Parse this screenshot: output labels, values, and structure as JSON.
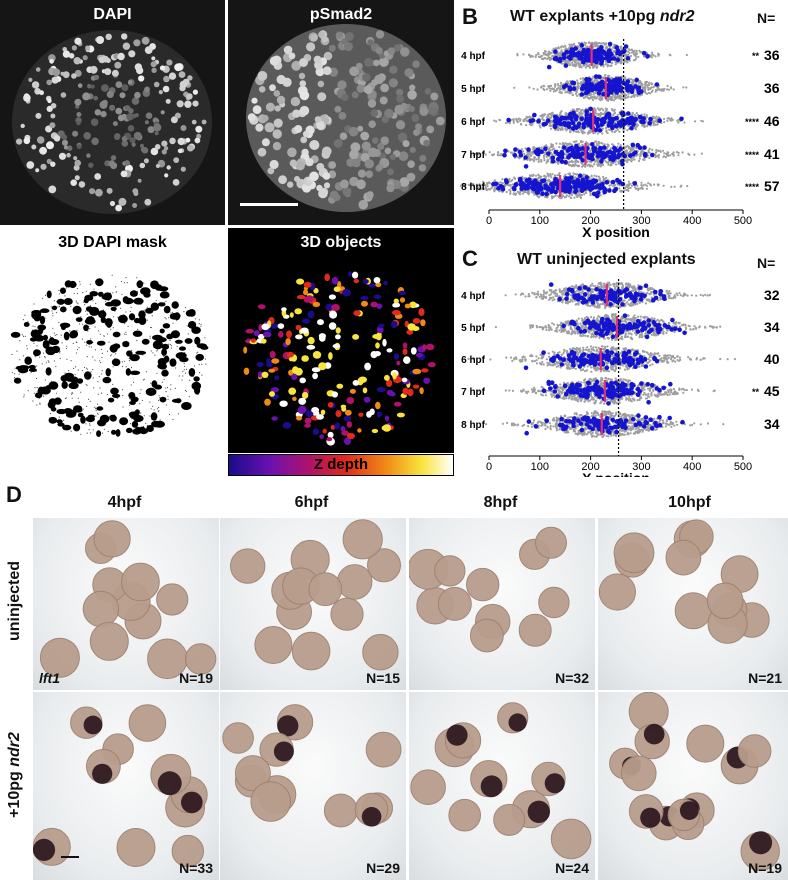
{
  "panel_a": {
    "letter": "A",
    "images": [
      {
        "title": "DAPI"
      },
      {
        "title": "pSmad2"
      },
      {
        "title": "3D DAPI mask"
      },
      {
        "title": "3D objects"
      }
    ],
    "zdepth_label": "Z depth",
    "colorbar": [
      "#1a0c8a",
      "#6a11b0",
      "#b0126a",
      "#e12a1c",
      "#f08a16",
      "#f8e43c",
      "#ffffff"
    ]
  },
  "panel_b": {
    "letter": "B",
    "title_prefix": "WT explants +10pg ",
    "title_gene": "ndr2",
    "n_header": "N="
  },
  "panel_c": {
    "letter": "C",
    "title": "WT uninjected explants",
    "n_header": "N="
  },
  "panel_d": {
    "letter": "D",
    "columns": [
      "4hpf",
      "6hpf",
      "8hpf",
      "10hpf"
    ],
    "row1_label": "uninjected",
    "row2_label_prefix": "+10pg ",
    "row2_label_gene": "ndr2",
    "gene_label": "lft1",
    "row1_n": [
      "N=19",
      "N=15",
      "N=32",
      "N=21"
    ],
    "row2_n": [
      "N=33",
      "N=29",
      "N=24",
      "N=19"
    ]
  },
  "chart_data": [
    {
      "type": "scatter",
      "title": "WT explants +10pg ndr2",
      "xlabel": "X position",
      "xlim": [
        0,
        500
      ],
      "xticks": [
        0,
        100,
        200,
        300,
        400,
        500
      ],
      "categories": [
        "4 hpf",
        "5 hpf",
        "6 hpf",
        "7 hpf",
        "8 hpf"
      ],
      "reference_line": 265,
      "median": [
        202,
        230,
        205,
        190,
        140
      ],
      "n": [
        "36",
        "36",
        "46",
        "41",
        "57"
      ],
      "significance": [
        "**",
        "",
        "****",
        "****",
        "****"
      ],
      "background_color": "#9e9e9e",
      "point_color": "#1515d0",
      "median_color": "#e0307a"
    },
    {
      "type": "scatter",
      "title": "WT uninjected explants",
      "xlabel": "X position",
      "xlim": [
        0,
        500
      ],
      "xticks": [
        0,
        100,
        200,
        300,
        400,
        500
      ],
      "categories": [
        "4 hpf",
        "5 hpf",
        "6 hpf",
        "7 hpf",
        "8 hpf"
      ],
      "reference_line": 255,
      "median": [
        232,
        252,
        220,
        228,
        222
      ],
      "n": [
        "32",
        "34",
        "40",
        "45",
        "34"
      ],
      "significance": [
        "",
        "",
        "",
        "**",
        ""
      ],
      "background_color": "#9e9e9e",
      "point_color": "#1515d0",
      "median_color": "#e0307a"
    }
  ]
}
